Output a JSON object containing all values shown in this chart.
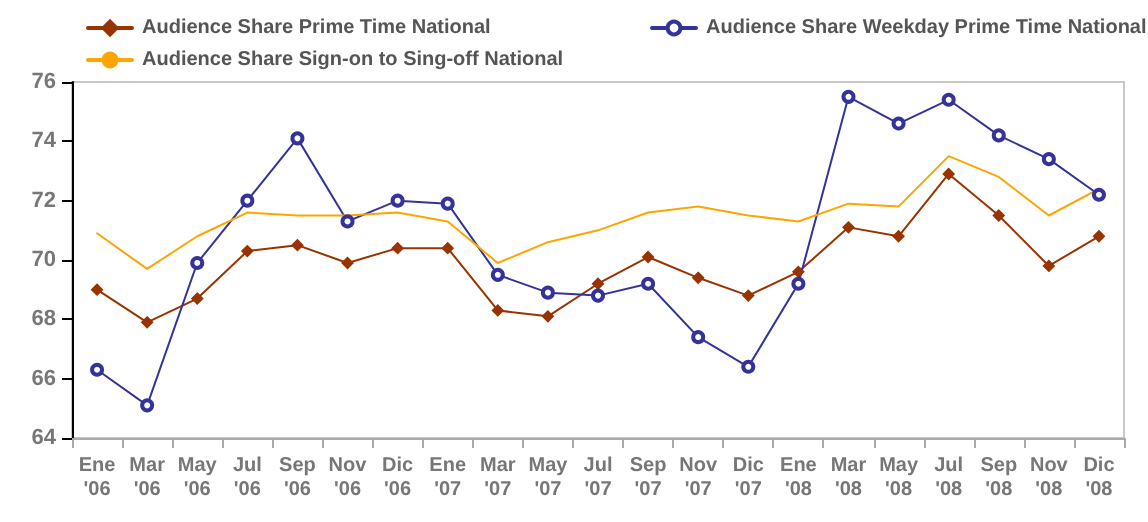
{
  "chart_data": {
    "type": "line",
    "categories": [
      "Ene '06",
      "Mar '06",
      "May '06",
      "Jul '06",
      "Sep '06",
      "Nov '06",
      "Dic '06",
      "Ene '07",
      "Mar '07",
      "May '07",
      "Jul '07",
      "Sep '07",
      "Nov '07",
      "Dic '07",
      "Ene '08",
      "Mar '08",
      "May '08",
      "Jul '08",
      "Sep '08",
      "Nov '08",
      "Dic '08"
    ],
    "series": [
      {
        "name": "Audience Share Prime Time National",
        "color": "#993300",
        "marker": "diamond",
        "values": [
          69.0,
          67.9,
          68.7,
          70.3,
          70.5,
          69.9,
          70.4,
          70.4,
          68.3,
          68.1,
          69.2,
          70.1,
          69.4,
          68.8,
          69.6,
          71.1,
          70.8,
          72.9,
          71.5,
          69.8,
          70.8
        ]
      },
      {
        "name": "Audience Share Weekday Prime Time National",
        "color": "#333399",
        "marker": "circle",
        "values": [
          66.3,
          65.1,
          69.9,
          72.0,
          74.1,
          71.3,
          72.0,
          71.9,
          69.5,
          68.9,
          68.8,
          69.2,
          67.4,
          66.4,
          69.2,
          75.5,
          74.6,
          75.4,
          74.2,
          73.4,
          72.2
        ]
      },
      {
        "name": "Audience Share Sign-on to Sing-off National",
        "color": "#ffa500",
        "marker": "none",
        "values": [
          70.9,
          69.7,
          70.8,
          71.6,
          71.5,
          71.5,
          71.6,
          71.3,
          69.9,
          70.6,
          71.0,
          71.6,
          71.8,
          71.5,
          71.3,
          71.9,
          71.8,
          73.5,
          72.8,
          71.5,
          72.4
        ]
      }
    ],
    "ylim": [
      64,
      76
    ],
    "yticks": [
      64,
      66,
      68,
      70,
      72,
      74,
      76
    ],
    "grid": false,
    "legend": "top",
    "line_style": "solid"
  }
}
